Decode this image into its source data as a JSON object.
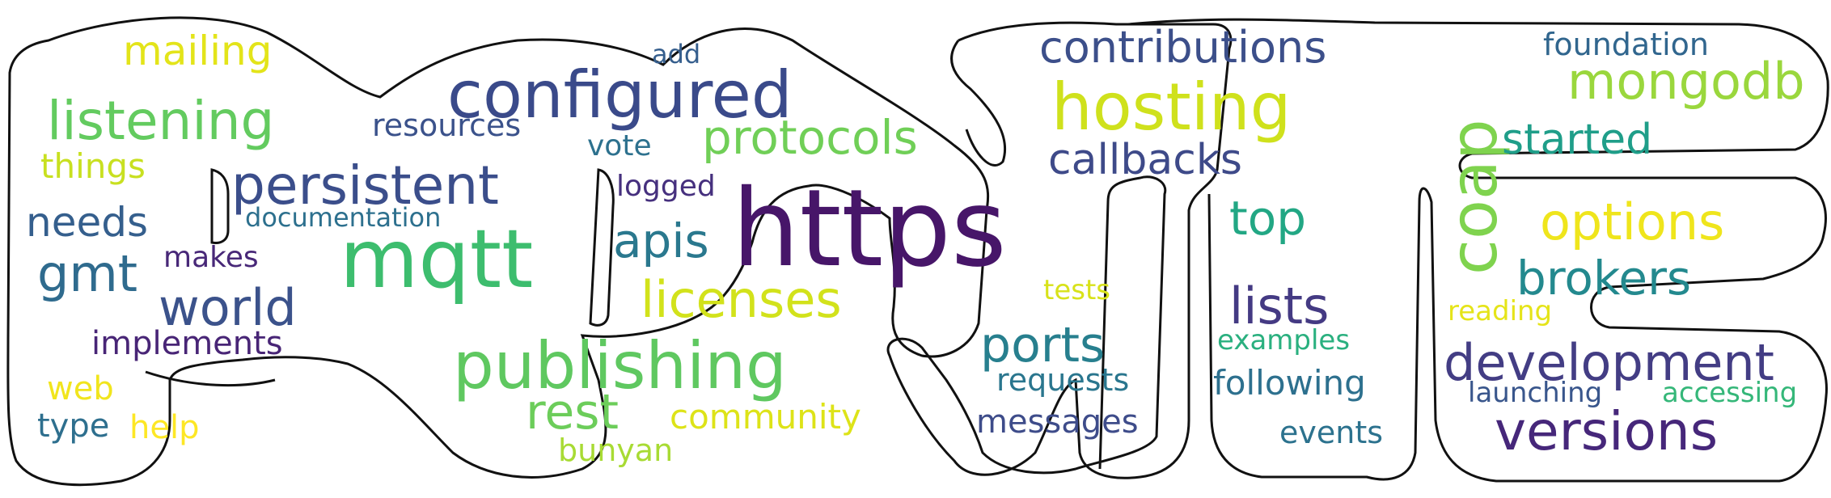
{
  "words": [
    {
      "text": "https",
      "color": "#471669"
    },
    {
      "text": "mqtt",
      "color": "#3dbd6e"
    },
    {
      "text": "configured",
      "color": "#3a4a8a"
    },
    {
      "text": "hosting",
      "color": "#cfe11c"
    },
    {
      "text": "publishing",
      "color": "#5fc860"
    },
    {
      "text": "listening",
      "color": "#63cb5f"
    },
    {
      "text": "persistent",
      "color": "#3b4e8b"
    },
    {
      "text": "coap",
      "color": "#7fd34e"
    },
    {
      "text": "mongodb",
      "color": "#9ad73d"
    },
    {
      "text": "licenses",
      "color": "#d2e21b"
    },
    {
      "text": "world",
      "color": "#3b528b"
    },
    {
      "text": "versions",
      "color": "#46277a"
    },
    {
      "text": "options",
      "color": "#efe51c"
    },
    {
      "text": "development",
      "color": "#433d84"
    },
    {
      "text": "brokers",
      "color": "#23898e"
    },
    {
      "text": "protocols",
      "color": "#70cf57"
    },
    {
      "text": "contributions",
      "color": "#3c4f8a"
    },
    {
      "text": "rest",
      "color": "#6ccd5a"
    },
    {
      "text": "callbacks",
      "color": "#3e4a89"
    },
    {
      "text": "ports",
      "color": "#277f8e"
    },
    {
      "text": "top",
      "color": "#22a784"
    },
    {
      "text": "lists",
      "color": "#443a83"
    },
    {
      "text": "gmt",
      "color": "#2f6b8e"
    },
    {
      "text": "apis",
      "color": "#2a788e"
    },
    {
      "text": "started",
      "color": "#1f9e89"
    },
    {
      "text": "mailing",
      "color": "#e3e41a"
    },
    {
      "text": "needs",
      "color": "#355f8d"
    },
    {
      "text": "following",
      "color": "#2d708e"
    },
    {
      "text": "community",
      "color": "#dde318"
    },
    {
      "text": "foundation",
      "color": "#31668e"
    },
    {
      "text": "messages",
      "color": "#3e4c8a"
    },
    {
      "text": "requests",
      "color": "#2a768e"
    },
    {
      "text": "implements",
      "color": "#482576"
    },
    {
      "text": "resources",
      "color": "#3b528b"
    },
    {
      "text": "events",
      "color": "#2c728e"
    },
    {
      "text": "examples",
      "color": "#2ab07f"
    },
    {
      "text": "launching",
      "color": "#39568c"
    },
    {
      "text": "accessing",
      "color": "#35b779"
    },
    {
      "text": "bunyan",
      "color": "#a8db34"
    },
    {
      "text": "things",
      "color": "#c8e020"
    },
    {
      "text": "documentation",
      "color": "#2d708e"
    },
    {
      "text": "makes",
      "color": "#482878"
    },
    {
      "text": "logged",
      "color": "#46307e"
    },
    {
      "text": "vote",
      "color": "#2d718e"
    },
    {
      "text": "web",
      "color": "#f1e51d"
    },
    {
      "text": "type",
      "color": "#2e6f8e"
    },
    {
      "text": "help",
      "color": "#fde725"
    },
    {
      "text": "add",
      "color": "#355e8d"
    },
    {
      "text": "tests",
      "color": "#d8e219"
    },
    {
      "text": "reading",
      "color": "#e5e419"
    }
  ],
  "outline": {
    "stroke": "#111111"
  }
}
